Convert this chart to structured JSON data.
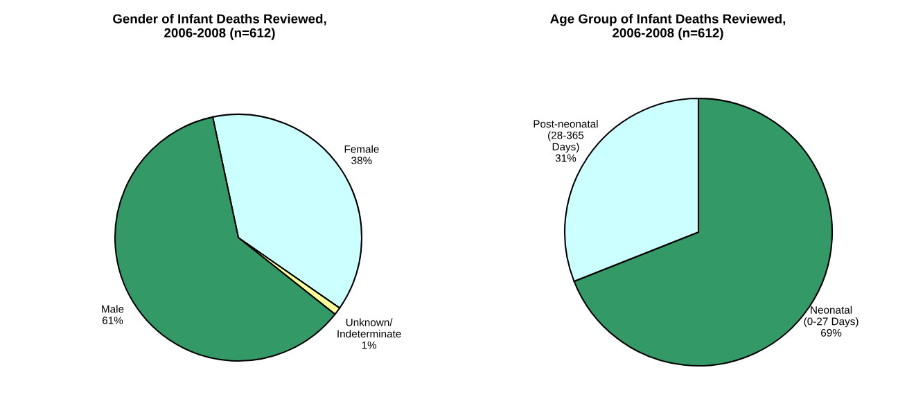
{
  "chart_data": [
    {
      "type": "pie",
      "title": "Gender of Infant Deaths Reviewed,\n2006-2008 (n=612)",
      "categories": [
        "Female",
        "Unknown/\nIndeterminate",
        "Male"
      ],
      "values": [
        38,
        1,
        61
      ],
      "value_labels": [
        "38%",
        "1%",
        "61%"
      ],
      "colors": [
        "#ccffff",
        "#ffff99",
        "#339966"
      ]
    },
    {
      "type": "pie",
      "title": "Age Group of Infant Deaths Reviewed,\n2006-2008 (n=612)",
      "categories": [
        "Neonatal\n(0-27 Days)",
        "Post-neonatal\n(28-365\nDays)"
      ],
      "values": [
        69,
        31
      ],
      "value_labels": [
        "69%",
        "31%"
      ],
      "colors": [
        "#339966",
        "#ccffff"
      ]
    }
  ]
}
